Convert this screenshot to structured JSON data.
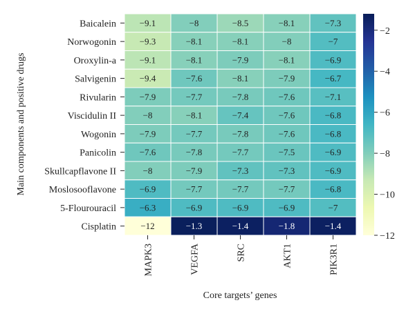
{
  "chart_data": {
    "type": "heatmap",
    "xlabel": "Core targets’ genes",
    "ylabel": "Main components and positive drugs",
    "columns": [
      "MAPK3",
      "VEGFA",
      "SRC",
      "AKT1",
      "PIK3R1"
    ],
    "rows": [
      "Baicalein",
      "Norwogonin",
      "Oroxylin-a",
      "Salvigenin",
      "Rivularin",
      "Viscidulin II",
      "Wogonin",
      "Panicolin",
      "Skullcapflavone II",
      "Moslosooflavone",
      "5-Flourouracil",
      "Cisplatin"
    ],
    "values": [
      [
        -9.1,
        -8,
        -8.5,
        -8.1,
        -7.3
      ],
      [
        -9.3,
        -8.1,
        -8.1,
        -8,
        -7
      ],
      [
        -9.1,
        -8.1,
        -7.9,
        -8.1,
        -6.9
      ],
      [
        -9.4,
        -7.6,
        -8.1,
        -7.9,
        -6.7
      ],
      [
        -7.9,
        -7.7,
        -7.8,
        -7.6,
        -7.1
      ],
      [
        -8,
        -8.1,
        -7.4,
        -7.6,
        -6.8
      ],
      [
        -7.9,
        -7.7,
        -7.8,
        -7.6,
        -6.8
      ],
      [
        -7.6,
        -7.8,
        -7.7,
        -7.5,
        -6.9
      ],
      [
        -8,
        -7.9,
        -7.3,
        -7.3,
        -6.9
      ],
      [
        -6.9,
        -7.7,
        -7.7,
        -7.7,
        -6.8
      ],
      [
        -6.3,
        -6.9,
        -6.9,
        -6.9,
        -7
      ],
      [
        -12,
        -1.3,
        -1.4,
        -1.8,
        -1.4
      ]
    ],
    "color_scale": {
      "min": -12,
      "max": -1.2,
      "colormap": "YlGnBu_r",
      "ticks": [
        -2,
        -4,
        -6,
        -8,
        -10,
        -12
      ]
    },
    "cell_labels": true
  },
  "labels": {
    "ticks": [
      "−2",
      "−4",
      "−6",
      "−8",
      "−10",
      "−12"
    ],
    "cells": [
      [
        "−9.1",
        "−8",
        "−8.5",
        "−8.1",
        "−7.3"
      ],
      [
        "−9.3",
        "−8.1",
        "−8.1",
        "−8",
        "−7"
      ],
      [
        "−9.1",
        "−8.1",
        "−7.9",
        "−8.1",
        "−6.9"
      ],
      [
        "−9.4",
        "−7.6",
        "−8.1",
        "−7.9",
        "−6.7"
      ],
      [
        "−7.9",
        "−7.7",
        "−7.8",
        "−7.6",
        "−7.1"
      ],
      [
        "−8",
        "−8.1",
        "−7.4",
        "−7.6",
        "−6.8"
      ],
      [
        "−7.9",
        "−7.7",
        "−7.8",
        "−7.6",
        "−6.8"
      ],
      [
        "−7.6",
        "−7.8",
        "−7.7",
        "−7.5",
        "−6.9"
      ],
      [
        "−8",
        "−7.9",
        "−7.3",
        "−7.3",
        "−6.9"
      ],
      [
        "−6.9",
        "−7.7",
        "−7.7",
        "−7.7",
        "−6.8"
      ],
      [
        "−6.3",
        "−6.9",
        "−6.9",
        "−6.9",
        "−7"
      ],
      [
        "−12",
        "−1.3",
        "−1.4",
        "−1.8",
        "−1.4"
      ]
    ]
  }
}
